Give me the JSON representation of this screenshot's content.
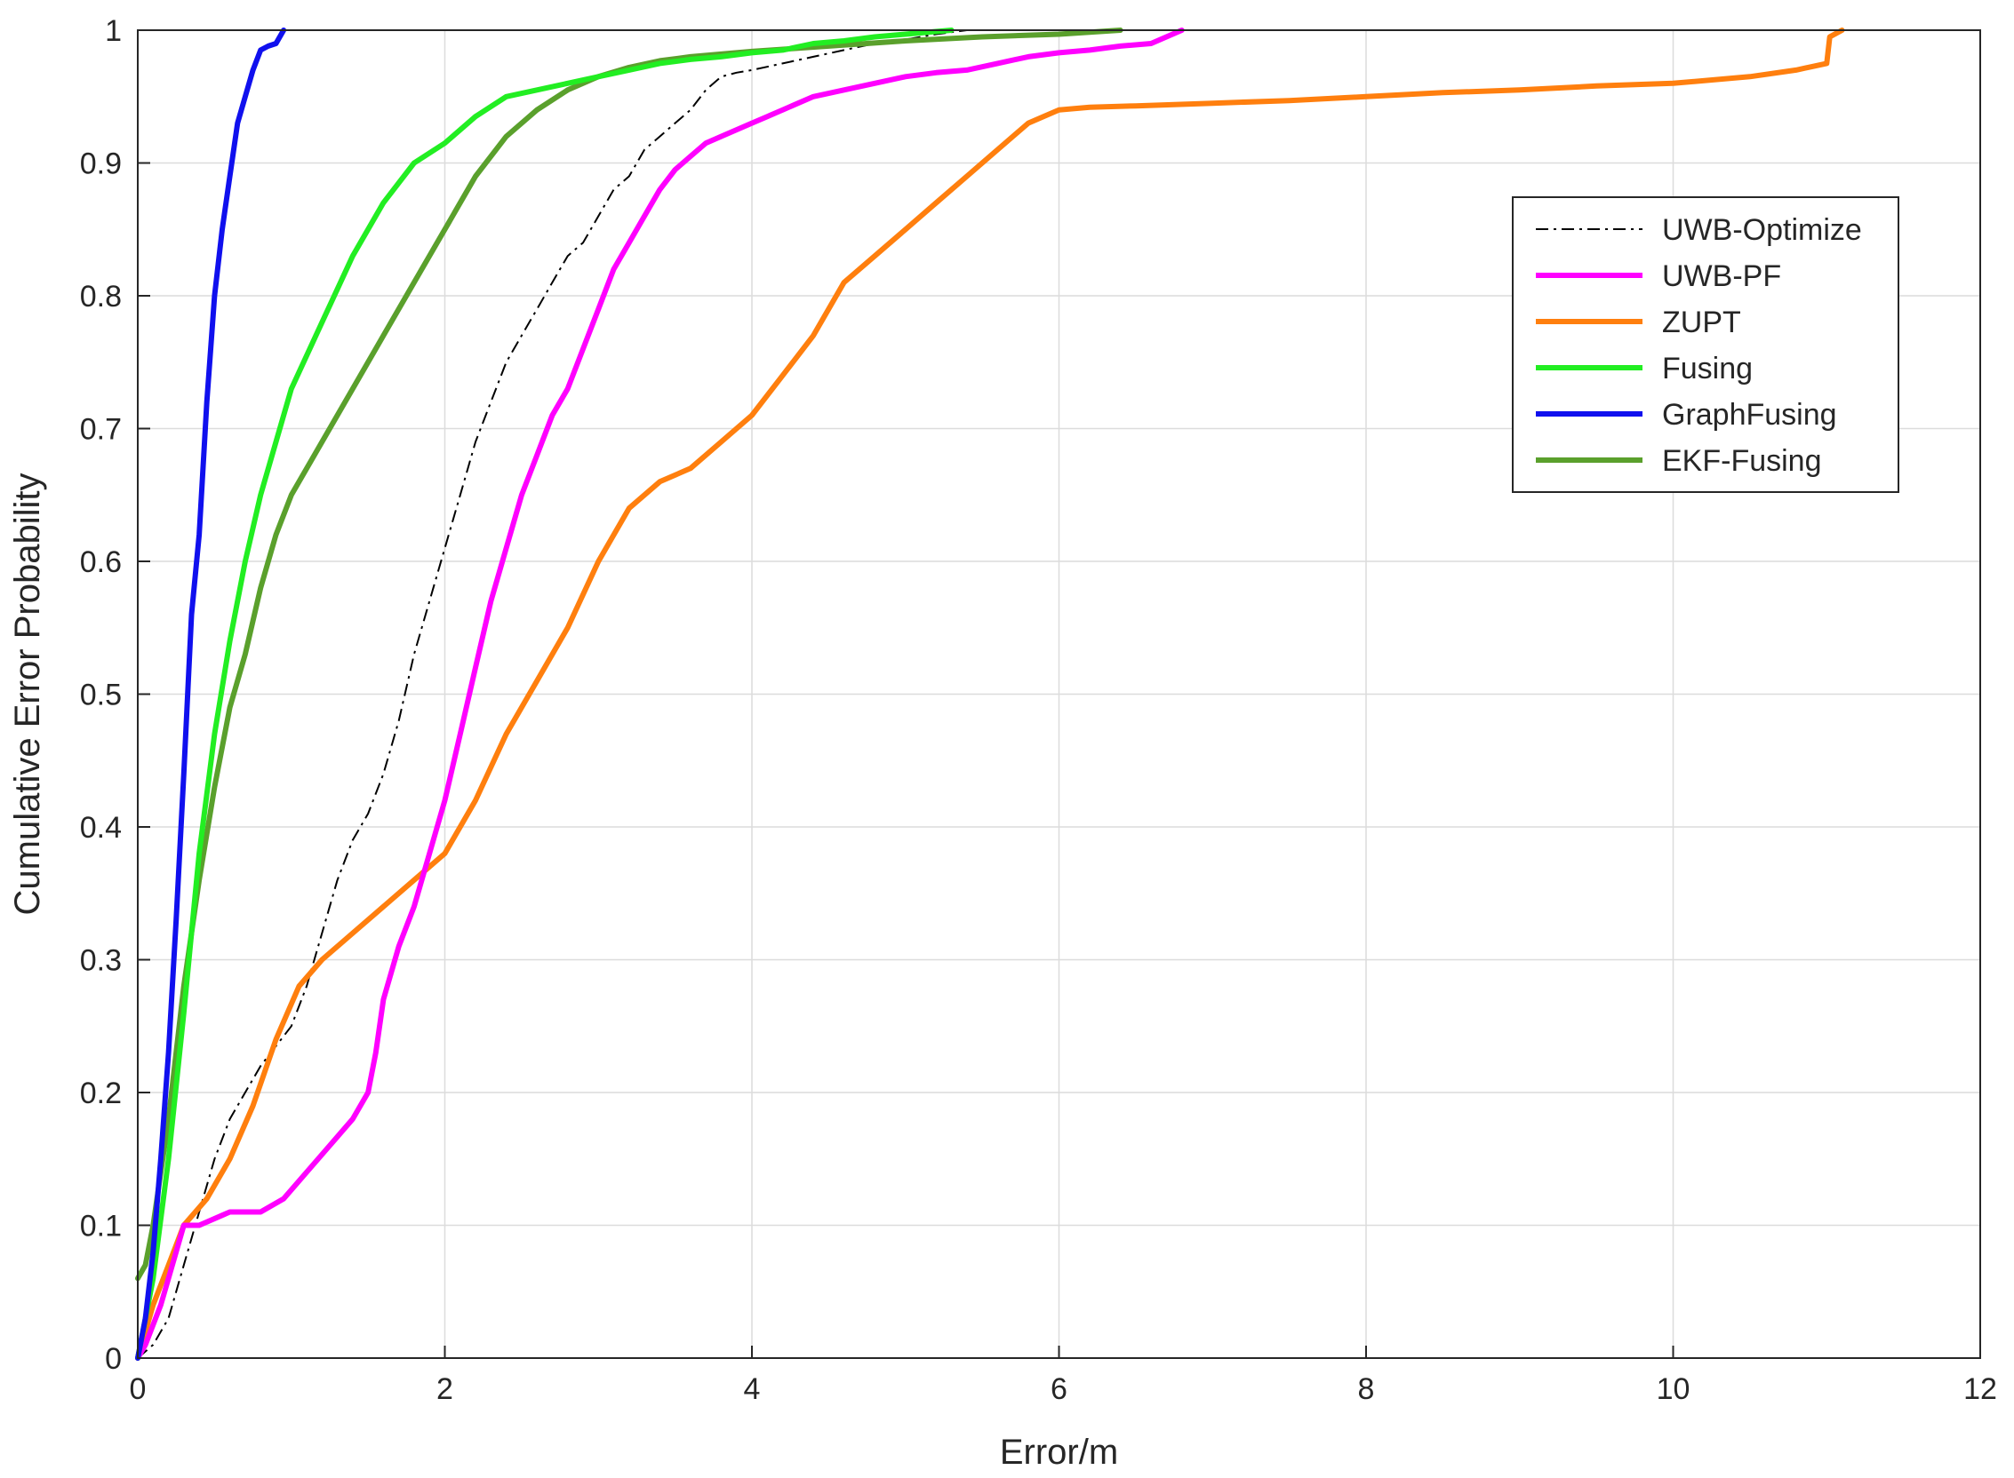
{
  "chart_data": {
    "type": "line",
    "title": "",
    "xlabel": "Error/m",
    "ylabel": "Cumulative Error Probability",
    "xlim": [
      0,
      12
    ],
    "ylim": [
      0,
      1
    ],
    "xticks": [
      0,
      2,
      4,
      6,
      8,
      10,
      12
    ],
    "yticks": [
      0,
      0.1,
      0.2,
      0.3,
      0.4,
      0.5,
      0.6,
      0.7,
      0.8,
      0.9,
      1
    ],
    "xtick_labels": [
      "0",
      "2",
      "4",
      "6",
      "8",
      "10",
      "12"
    ],
    "ytick_labels": [
      "0",
      "0.1",
      "0.2",
      "0.3",
      "0.4",
      "0.5",
      "0.6",
      "0.7",
      "0.8",
      "0.9",
      "1"
    ],
    "grid": true,
    "legend_position": "top-right",
    "series": [
      {
        "name": "UWB-Optimize",
        "color": "#000000",
        "style": "dashdot",
        "x": [
          0,
          0.1,
          0.2,
          0.3,
          0.4,
          0.5,
          0.6,
          0.8,
          1.0,
          1.1,
          1.2,
          1.3,
          1.4,
          1.5,
          1.6,
          1.7,
          1.8,
          1.9,
          2.0,
          2.1,
          2.2,
          2.3,
          2.4,
          2.5,
          2.6,
          2.7,
          2.8,
          2.9,
          3.0,
          3.1,
          3.2,
          3.3,
          3.4,
          3.5,
          3.6,
          3.7,
          3.8,
          3.9,
          4.0,
          4.2,
          4.4,
          4.6,
          4.8,
          5.0,
          5.2,
          5.4
        ],
        "y": [
          0,
          0.01,
          0.03,
          0.07,
          0.11,
          0.15,
          0.18,
          0.22,
          0.25,
          0.28,
          0.32,
          0.36,
          0.39,
          0.41,
          0.44,
          0.48,
          0.53,
          0.57,
          0.61,
          0.65,
          0.69,
          0.72,
          0.75,
          0.77,
          0.79,
          0.81,
          0.83,
          0.84,
          0.86,
          0.88,
          0.89,
          0.91,
          0.92,
          0.93,
          0.94,
          0.955,
          0.965,
          0.968,
          0.97,
          0.975,
          0.98,
          0.985,
          0.99,
          0.993,
          0.997,
          1.0
        ]
      },
      {
        "name": "UWB-PF",
        "color": "#ff00ff",
        "style": "solid",
        "x": [
          0,
          0.05,
          0.15,
          0.25,
          0.3,
          0.4,
          0.6,
          0.8,
          0.95,
          1.1,
          1.25,
          1.4,
          1.5,
          1.55,
          1.6,
          1.7,
          1.8,
          1.9,
          2.0,
          2.1,
          2.2,
          2.3,
          2.4,
          2.5,
          2.6,
          2.7,
          2.8,
          2.9,
          3.0,
          3.1,
          3.2,
          3.3,
          3.4,
          3.5,
          3.6,
          3.7,
          3.8,
          3.9,
          4.0,
          4.1,
          4.2,
          4.4,
          4.6,
          4.8,
          5.0,
          5.2,
          5.4,
          5.6,
          5.8,
          6.0,
          6.2,
          6.4,
          6.6,
          6.7,
          6.8
        ],
        "y": [
          0,
          0.01,
          0.04,
          0.08,
          0.1,
          0.1,
          0.11,
          0.11,
          0.12,
          0.14,
          0.16,
          0.18,
          0.2,
          0.23,
          0.27,
          0.31,
          0.34,
          0.38,
          0.42,
          0.47,
          0.52,
          0.57,
          0.61,
          0.65,
          0.68,
          0.71,
          0.73,
          0.76,
          0.79,
          0.82,
          0.84,
          0.86,
          0.88,
          0.895,
          0.905,
          0.915,
          0.92,
          0.925,
          0.93,
          0.935,
          0.94,
          0.95,
          0.955,
          0.96,
          0.965,
          0.968,
          0.97,
          0.975,
          0.98,
          0.983,
          0.985,
          0.988,
          0.99,
          0.995,
          1.0
        ]
      },
      {
        "name": "ZUPT",
        "color": "#ff7f0e",
        "style": "solid",
        "x": [
          0,
          0.1,
          0.2,
          0.3,
          0.45,
          0.6,
          0.75,
          0.9,
          1.05,
          1.2,
          1.4,
          1.6,
          1.8,
          2.0,
          2.2,
          2.4,
          2.6,
          2.8,
          3.0,
          3.2,
          3.4,
          3.6,
          3.8,
          4.0,
          4.2,
          4.4,
          4.6,
          4.8,
          5.0,
          5.2,
          5.4,
          5.6,
          5.8,
          6.0,
          6.2,
          6.5,
          7.0,
          7.5,
          8.0,
          8.5,
          9.0,
          9.5,
          10.0,
          10.5,
          10.8,
          11.0,
          11.02,
          11.1
        ],
        "y": [
          0,
          0.04,
          0.07,
          0.1,
          0.12,
          0.15,
          0.19,
          0.24,
          0.28,
          0.3,
          0.32,
          0.34,
          0.36,
          0.38,
          0.42,
          0.47,
          0.51,
          0.55,
          0.6,
          0.64,
          0.66,
          0.67,
          0.69,
          0.71,
          0.74,
          0.77,
          0.81,
          0.83,
          0.85,
          0.87,
          0.89,
          0.91,
          0.93,
          0.94,
          0.942,
          0.943,
          0.945,
          0.947,
          0.95,
          0.953,
          0.955,
          0.958,
          0.96,
          0.965,
          0.97,
          0.975,
          0.995,
          1.0
        ]
      },
      {
        "name": "Fusing",
        "color": "#22ee22",
        "style": "solid",
        "x": [
          0,
          0.1,
          0.2,
          0.3,
          0.4,
          0.5,
          0.6,
          0.7,
          0.8,
          0.9,
          1.0,
          1.2,
          1.4,
          1.6,
          1.8,
          2.0,
          2.2,
          2.4,
          2.6,
          2.8,
          3.0,
          3.2,
          3.4,
          3.6,
          3.8,
          4.0,
          4.2,
          4.4,
          4.6,
          4.8,
          5.0,
          5.2,
          5.3
        ],
        "y": [
          0,
          0.06,
          0.15,
          0.26,
          0.38,
          0.47,
          0.54,
          0.6,
          0.65,
          0.69,
          0.73,
          0.78,
          0.83,
          0.87,
          0.9,
          0.915,
          0.935,
          0.95,
          0.955,
          0.96,
          0.965,
          0.97,
          0.975,
          0.978,
          0.98,
          0.983,
          0.985,
          0.99,
          0.992,
          0.995,
          0.997,
          0.999,
          1.0
        ]
      },
      {
        "name": "GraphFusing",
        "color": "#1010ee",
        "style": "solid",
        "x": [
          0,
          0.05,
          0.1,
          0.15,
          0.2,
          0.25,
          0.3,
          0.35,
          0.4,
          0.45,
          0.5,
          0.55,
          0.6,
          0.65,
          0.7,
          0.75,
          0.8,
          0.85,
          0.9,
          0.95
        ],
        "y": [
          0,
          0.03,
          0.08,
          0.15,
          0.23,
          0.33,
          0.44,
          0.56,
          0.62,
          0.72,
          0.8,
          0.85,
          0.89,
          0.93,
          0.95,
          0.97,
          0.985,
          0.988,
          0.99,
          1.0
        ]
      },
      {
        "name": "EKF-Fusing",
        "color": "#5aa02c",
        "style": "solid",
        "x": [
          0,
          0.05,
          0.1,
          0.2,
          0.3,
          0.4,
          0.5,
          0.6,
          0.7,
          0.8,
          0.9,
          1.0,
          1.2,
          1.4,
          1.6,
          1.8,
          2.0,
          2.2,
          2.4,
          2.6,
          2.8,
          3.0,
          3.2,
          3.4,
          3.6,
          3.8,
          4.0,
          4.5,
          5.0,
          5.5,
          6.0,
          6.4
        ],
        "y": [
          0.06,
          0.07,
          0.1,
          0.18,
          0.28,
          0.36,
          0.43,
          0.49,
          0.53,
          0.58,
          0.62,
          0.65,
          0.69,
          0.73,
          0.77,
          0.81,
          0.85,
          0.89,
          0.92,
          0.94,
          0.955,
          0.965,
          0.972,
          0.977,
          0.98,
          0.982,
          0.984,
          0.988,
          0.992,
          0.995,
          0.997,
          1.0
        ]
      }
    ]
  }
}
